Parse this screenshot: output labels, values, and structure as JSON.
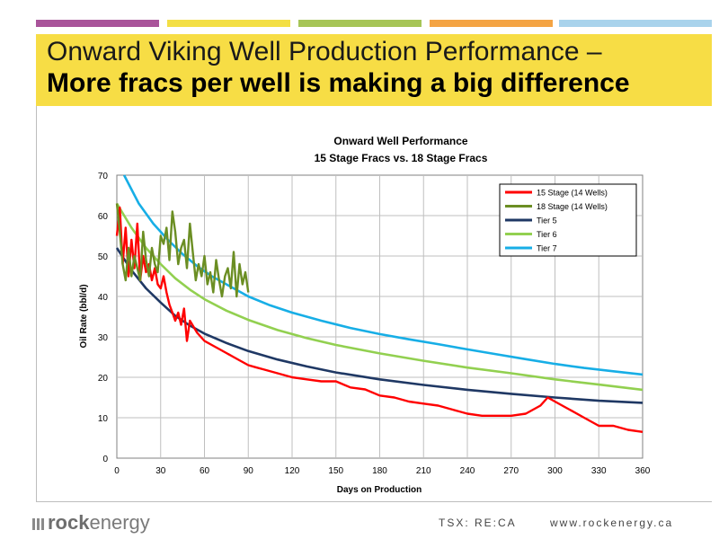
{
  "slide": {
    "title_line1": "Onward Viking Well Production Performance –",
    "title_line2": "More fracs per well is making a big difference",
    "top_bar_colors": [
      "#a9549a",
      "#f3df45",
      "#a6c557",
      "#f4a444",
      "#a9d3ec"
    ],
    "title_bg": "#f7dd45"
  },
  "footer": {
    "logo_rock": "rock",
    "logo_energy": "energy",
    "ticker": "TSX: RE:CA",
    "url": "www.rockenergy.ca"
  },
  "chart_data": {
    "type": "line",
    "title": "Onward Well Performance",
    "subtitle": "15 Stage Fracs vs. 18 Stage Fracs",
    "xlabel": "Days on Production",
    "ylabel": "Oil Rate  (bbl/d)",
    "xlim": [
      0,
      360
    ],
    "ylim": [
      0,
      70
    ],
    "x_ticks": [
      "0",
      "30",
      "60",
      "90",
      "120",
      "150",
      "180",
      "210",
      "240",
      "270",
      "300",
      "330",
      "360"
    ],
    "y_ticks": [
      "0",
      "10",
      "20",
      "30",
      "40",
      "50",
      "60",
      "70"
    ],
    "grid": true,
    "legend_position": "top-right",
    "series": [
      {
        "name": "15 Stage (14 Wells)",
        "color": "#ff0000",
        "x": [
          0,
          2,
          4,
          6,
          8,
          10,
          12,
          14,
          16,
          18,
          20,
          22,
          24,
          26,
          28,
          30,
          32,
          34,
          36,
          38,
          40,
          42,
          44,
          46,
          48,
          50,
          55,
          60,
          65,
          70,
          75,
          80,
          85,
          90,
          95,
          100,
          110,
          120,
          130,
          140,
          150,
          160,
          170,
          180,
          190,
          200,
          210,
          220,
          230,
          240,
          250,
          260,
          270,
          280,
          290,
          295,
          300,
          305,
          310,
          320,
          330,
          340,
          350,
          360
        ],
        "y": [
          55,
          62,
          48,
          57,
          45,
          54,
          47,
          58,
          44,
          50,
          46,
          48,
          44,
          47,
          43,
          42,
          45,
          41,
          38,
          36,
          34,
          36,
          33,
          37,
          29,
          34,
          31,
          29,
          28,
          27,
          26,
          25,
          24,
          23,
          22.5,
          22,
          21,
          20,
          19.5,
          19,
          19,
          17.5,
          17,
          15.5,
          15,
          14,
          13.5,
          13,
          12,
          11,
          10.5,
          10.5,
          10.5,
          11,
          13,
          15,
          14,
          13,
          12,
          10,
          8,
          8,
          7,
          6.5
        ]
      },
      {
        "name": "18 Stage (14 Wells)",
        "color": "#6b8e23",
        "x": [
          0,
          2,
          4,
          6,
          8,
          10,
          12,
          14,
          16,
          18,
          20,
          22,
          24,
          26,
          28,
          30,
          32,
          34,
          36,
          38,
          40,
          42,
          44,
          46,
          48,
          50,
          52,
          54,
          56,
          58,
          60,
          62,
          64,
          66,
          68,
          70,
          72,
          74,
          76,
          78,
          80,
          82,
          84,
          86,
          88,
          90
        ],
        "y": [
          63,
          56,
          48,
          44,
          52,
          45,
          50,
          47,
          44,
          56,
          49,
          45,
          52,
          48,
          46,
          55,
          53,
          57,
          49,
          61,
          56,
          48,
          52,
          54,
          47,
          58,
          51,
          44,
          48,
          45,
          50,
          43,
          46,
          41,
          49,
          44,
          40,
          45,
          47,
          42,
          51,
          40,
          48,
          43,
          46,
          41
        ]
      },
      {
        "name": "Tier 5",
        "color": "#1f3864",
        "x": [
          0,
          10,
          20,
          30,
          40,
          50,
          60,
          75,
          90,
          110,
          130,
          150,
          180,
          210,
          240,
          270,
          300,
          330,
          360
        ],
        "y": [
          52,
          46.5,
          42,
          38.5,
          35.2,
          32.8,
          30.8,
          28.5,
          26.5,
          24.4,
          22.7,
          21.2,
          19.5,
          18.1,
          16.9,
          15.9,
          15,
          14.2,
          13.7
        ]
      },
      {
        "name": "Tier 6",
        "color": "#92d050",
        "x": [
          0,
          10,
          20,
          30,
          40,
          50,
          60,
          75,
          90,
          110,
          130,
          150,
          180,
          210,
          240,
          270,
          300,
          330,
          360
        ],
        "y": [
          63,
          57,
          52,
          48,
          44.5,
          41.7,
          39.3,
          36.5,
          34.2,
          31.7,
          29.7,
          28,
          25.9,
          24.1,
          22.4,
          21,
          19.5,
          18.2,
          16.9
        ]
      },
      {
        "name": "Tier 7",
        "color": "#17aee6",
        "x": [
          5,
          15,
          25,
          35,
          45,
          55,
          65,
          75,
          90,
          105,
          120,
          140,
          160,
          180,
          200,
          220,
          240,
          260,
          280,
          300,
          320,
          340,
          360
        ],
        "y": [
          70,
          63,
          58,
          54,
          50.5,
          47.5,
          45,
          43,
          40,
          37.8,
          36,
          34,
          32.2,
          30.7,
          29.4,
          28.2,
          26.9,
          25.7,
          24.5,
          23.3,
          22.3,
          21.5,
          20.7
        ]
      }
    ]
  }
}
